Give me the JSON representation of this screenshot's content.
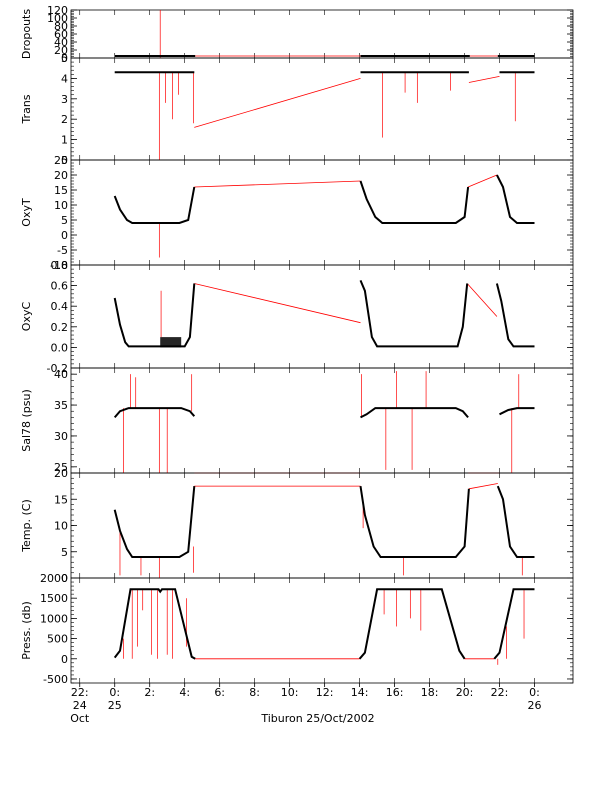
{
  "xlabel": "Tiburon 25/Oct/2002",
  "x_ticks": [
    {
      "t": -2,
      "label": "22:",
      "sub": "24"
    },
    {
      "t": 0,
      "label": "0:",
      "sub": "25"
    },
    {
      "t": 2,
      "label": "2:"
    },
    {
      "t": 4,
      "label": "4:"
    },
    {
      "t": 6,
      "label": "6:"
    },
    {
      "t": 8,
      "label": "8:"
    },
    {
      "t": 10,
      "label": "10:"
    },
    {
      "t": 12,
      "label": "12:"
    },
    {
      "t": 14,
      "label": "14:"
    },
    {
      "t": 16,
      "label": "16:"
    },
    {
      "t": 18,
      "label": "18:"
    },
    {
      "t": 20,
      "label": "20:"
    },
    {
      "t": 22,
      "label": "22:"
    },
    {
      "t": 24,
      "label": "0:",
      "sub": "26"
    }
  ],
  "x_month_label": "Oct",
  "colors": {
    "series": "#000000",
    "connector": "#ff0000",
    "axis": "#000000"
  },
  "chart_data": [
    {
      "type": "line",
      "ylabel": "Dropouts",
      "ylim": [
        0,
        120
      ],
      "yticks": [
        0,
        20,
        40,
        60,
        80,
        100,
        120
      ],
      "ytick_labels": [
        "0",
        "20",
        "40",
        "60",
        "80",
        "100",
        "120"
      ],
      "black_segments": [
        {
          "x": [
            0,
            4.6
          ],
          "y": [
            5,
            5
          ]
        },
        {
          "x": [
            14.05,
            20.3
          ],
          "y": [
            5,
            5
          ]
        },
        {
          "x": [
            21.9,
            24.0
          ],
          "y": [
            5,
            5
          ]
        }
      ],
      "red_segments": [
        {
          "x": [
            4.6,
            14.05
          ],
          "y": [
            5,
            5
          ]
        },
        {
          "x": [
            20.3,
            21.9
          ],
          "y": [
            5,
            5
          ]
        }
      ],
      "spikes": [
        {
          "x": 2.6,
          "y0": 0,
          "y1": 120
        }
      ]
    },
    {
      "type": "line",
      "ylabel": "Trans",
      "ylim": [
        0,
        5
      ],
      "yticks": [
        0,
        1,
        2,
        3,
        4,
        5
      ],
      "ytick_labels": [
        "0",
        "1",
        "2",
        "3",
        "4",
        "5"
      ],
      "black_segments": [
        {
          "x": [
            0,
            4.55
          ],
          "y": [
            4.3,
            4.3
          ]
        },
        {
          "x": [
            14.05,
            20.25
          ],
          "y": [
            4.3,
            4.3
          ]
        },
        {
          "x": [
            22.0,
            24.0
          ],
          "y": [
            4.3,
            4.3
          ]
        }
      ],
      "red_segments": [
        {
          "x": [
            4.55,
            14.05
          ],
          "y": [
            1.6,
            4.0
          ]
        },
        {
          "x": [
            20.25,
            22.0
          ],
          "y": [
            3.8,
            4.1
          ]
        }
      ],
      "spikes": [
        {
          "x": 2.55,
          "y0": 4.3,
          "y1": -0.2
        },
        {
          "x": 2.9,
          "y0": 4.3,
          "y1": 2.8
        },
        {
          "x": 3.3,
          "y0": 4.3,
          "y1": 2.0
        },
        {
          "x": 3.65,
          "y0": 4.3,
          "y1": 3.2
        },
        {
          "x": 4.5,
          "y0": 4.3,
          "y1": 1.8
        },
        {
          "x": 15.3,
          "y0": 4.3,
          "y1": 1.1
        },
        {
          "x": 16.6,
          "y0": 4.3,
          "y1": 3.3
        },
        {
          "x": 17.3,
          "y0": 4.3,
          "y1": 2.8
        },
        {
          "x": 19.2,
          "y0": 4.3,
          "y1": 3.4
        },
        {
          "x": 22.9,
          "y0": 4.3,
          "y1": 1.9
        }
      ]
    },
    {
      "type": "line",
      "ylabel": "OxyT",
      "ylim": [
        -10,
        25
      ],
      "yticks": [
        -10,
        -5,
        0,
        5,
        10,
        15,
        20,
        25
      ],
      "ytick_labels": [
        "-10",
        "-5",
        "0",
        "5",
        "10",
        "15",
        "20",
        "25"
      ],
      "black_segments": [
        {
          "x": [
            0,
            0.3,
            0.7,
            1.0,
            3.7,
            4.2,
            4.55
          ],
          "y": [
            13,
            8.5,
            5,
            4,
            4,
            5,
            16
          ]
        },
        {
          "x": [
            14.05,
            14.4,
            14.9,
            15.3,
            19.5,
            20.0,
            20.2
          ],
          "y": [
            18,
            12,
            6,
            4,
            4,
            6,
            16
          ]
        },
        {
          "x": [
            21.85,
            22.2,
            22.6,
            23.0,
            24.0
          ],
          "y": [
            20,
            16,
            6,
            4,
            4
          ]
        }
      ],
      "red_segments": [
        {
          "x": [
            4.55,
            14.05
          ],
          "y": [
            16,
            18
          ]
        },
        {
          "x": [
            20.2,
            21.85
          ],
          "y": [
            16,
            20
          ]
        }
      ],
      "spikes": [
        {
          "x": 2.55,
          "y0": 4,
          "y1": -7.5
        }
      ]
    },
    {
      "type": "line",
      "ylabel": "OxyC",
      "ylim": [
        -0.2,
        0.8
      ],
      "yticks": [
        -0.2,
        0.0,
        0.2,
        0.4,
        0.6,
        0.8
      ],
      "ytick_labels": [
        "-0.2",
        "0.0",
        "0.2",
        "0.4",
        "0.6",
        "0.8"
      ],
      "black_segments": [
        {
          "x": [
            0,
            0.3,
            0.6,
            0.8,
            4.0,
            4.3,
            4.55
          ],
          "y": [
            0.48,
            0.22,
            0.05,
            0.01,
            0.01,
            0.1,
            0.62
          ]
        },
        {
          "x": [
            14.05,
            14.3,
            14.7,
            15.0,
            19.6,
            19.9,
            20.15
          ],
          "y": [
            0.65,
            0.55,
            0.1,
            0.01,
            0.01,
            0.2,
            0.62
          ]
        },
        {
          "x": [
            21.85,
            22.1,
            22.5,
            22.8,
            24.0
          ],
          "y": [
            0.62,
            0.45,
            0.08,
            0.01,
            0.01
          ]
        }
      ],
      "red_segments": [
        {
          "x": [
            4.55,
            14.05
          ],
          "y": [
            0.62,
            0.24
          ]
        },
        {
          "x": [
            20.15,
            21.85
          ],
          "y": [
            0.62,
            0.3
          ]
        }
      ],
      "noise_band": {
        "x": [
          2.6,
          3.8
        ],
        "y": [
          0.0,
          0.1
        ]
      },
      "spikes": [
        {
          "x": 2.65,
          "y0": 0.1,
          "y1": 0.55
        }
      ]
    },
    {
      "type": "line",
      "ylabel": "Sal78 (psu)",
      "ylim": [
        24,
        41
      ],
      "yticks": [
        25,
        30,
        35,
        40
      ],
      "ytick_labels": [
        "25",
        "30",
        "35",
        "40"
      ],
      "black_segments": [
        {
          "x": [
            0,
            0.3,
            0.8,
            3.8,
            4.3,
            4.55
          ],
          "y": [
            33.0,
            34.0,
            34.5,
            34.5,
            34.0,
            33.2
          ]
        },
        {
          "x": [
            14.05,
            14.4,
            14.9,
            19.5,
            19.9,
            20.2
          ],
          "y": [
            33.0,
            33.5,
            34.5,
            34.5,
            34.0,
            33.0
          ]
        },
        {
          "x": [
            22.0,
            22.5,
            23.0,
            24.0
          ],
          "y": [
            33.5,
            34.2,
            34.5,
            34.5
          ]
        }
      ],
      "red_segments": [
        {
          "x": [
            4.55,
            14.05
          ],
          "y": [
            24.0,
            24.0
          ]
        },
        {
          "x": [
            20.2,
            22.0
          ],
          "y": [
            24.0,
            24.0
          ]
        }
      ],
      "spikes": [
        {
          "x": 0.5,
          "y0": 34.5,
          "y1": 24.0
        },
        {
          "x": 0.9,
          "y0": 34.5,
          "y1": 40.0
        },
        {
          "x": 1.2,
          "y0": 34.5,
          "y1": 39.5
        },
        {
          "x": 2.55,
          "y0": 34.5,
          "y1": 24.0
        },
        {
          "x": 3.0,
          "y0": 34.5,
          "y1": 24.0
        },
        {
          "x": 4.4,
          "y0": 34.0,
          "y1": 40.0
        },
        {
          "x": 14.1,
          "y0": 33.0,
          "y1": 40.0
        },
        {
          "x": 15.5,
          "y0": 34.5,
          "y1": 24.5
        },
        {
          "x": 16.1,
          "y0": 34.5,
          "y1": 40.5
        },
        {
          "x": 17.0,
          "y0": 34.5,
          "y1": 24.5
        },
        {
          "x": 17.8,
          "y0": 34.5,
          "y1": 40.5
        },
        {
          "x": 22.7,
          "y0": 34.5,
          "y1": 24.0
        },
        {
          "x": 23.1,
          "y0": 34.5,
          "y1": 40.0
        }
      ]
    },
    {
      "type": "line",
      "ylabel": "Temp. (C)",
      "ylim": [
        0,
        20
      ],
      "yticks": [
        0,
        5,
        10,
        15,
        20
      ],
      "ytick_labels": [
        "0",
        "5",
        "10",
        "15",
        "20"
      ],
      "black_segments": [
        {
          "x": [
            0,
            0.3,
            0.7,
            1.0,
            3.7,
            4.2,
            4.55
          ],
          "y": [
            13,
            9,
            5.5,
            4,
            4,
            5,
            17.5
          ]
        },
        {
          "x": [
            14.05,
            14.3,
            14.8,
            15.2,
            19.5,
            20.0,
            20.25
          ],
          "y": [
            17.5,
            12,
            6,
            4,
            4,
            6,
            17
          ]
        },
        {
          "x": [
            21.9,
            22.2,
            22.6,
            23.0,
            24.0
          ],
          "y": [
            17.5,
            15,
            6,
            4,
            4
          ]
        }
      ],
      "red_segments": [
        {
          "x": [
            4.55,
            14.05
          ],
          "y": [
            17.5,
            17.5
          ]
        },
        {
          "x": [
            20.25,
            21.9
          ],
          "y": [
            17,
            18
          ]
        }
      ],
      "spikes": [
        {
          "x": 0.3,
          "y0": 9,
          "y1": 0.5
        },
        {
          "x": 1.5,
          "y0": 4,
          "y1": 0.5
        },
        {
          "x": 2.55,
          "y0": 4,
          "y1": -0.5
        },
        {
          "x": 4.5,
          "y0": 6,
          "y1": 1.0
        },
        {
          "x": 14.2,
          "y0": 14,
          "y1": 9.5
        },
        {
          "x": 16.5,
          "y0": 4,
          "y1": 0.5
        },
        {
          "x": 23.3,
          "y0": 4,
          "y1": 0.5
        }
      ]
    },
    {
      "type": "line",
      "ylabel": "Press. (db)",
      "ylim": [
        -600,
        2000
      ],
      "yticks": [
        -500,
        0,
        500,
        1000,
        1500,
        2000
      ],
      "ytick_labels": [
        "-500",
        "0",
        "500",
        "1000",
        "1500",
        "2000"
      ],
      "black_segments": [
        {
          "x": [
            0,
            0.3,
            0.9,
            2.5,
            2.6,
            2.7,
            3.45,
            4.4,
            4.6
          ],
          "y": [
            30,
            200,
            1720,
            1720,
            1660,
            1720,
            1720,
            50,
            0
          ]
        },
        {
          "x": [
            14.0,
            14.3,
            15.0,
            18.7,
            19.7,
            20.0
          ],
          "y": [
            0,
            150,
            1720,
            1720,
            200,
            0
          ]
        },
        {
          "x": [
            21.7,
            22.0,
            22.8,
            24.0
          ],
          "y": [
            0,
            150,
            1720,
            1720
          ]
        }
      ],
      "red_segments": [
        {
          "x": [
            4.6,
            14.0
          ],
          "y": [
            0,
            0
          ]
        },
        {
          "x": [
            20.0,
            21.7
          ],
          "y": [
            0,
            0
          ]
        }
      ],
      "spikes": [
        {
          "x": 0.5,
          "y0": 500,
          "y1": 0
        },
        {
          "x": 1.0,
          "y0": 1720,
          "y1": 0
        },
        {
          "x": 1.3,
          "y0": 1720,
          "y1": 300
        },
        {
          "x": 1.6,
          "y0": 1720,
          "y1": 1200
        },
        {
          "x": 2.1,
          "y0": 1720,
          "y1": 100
        },
        {
          "x": 2.45,
          "y0": 1720,
          "y1": 0
        },
        {
          "x": 3.0,
          "y0": 1720,
          "y1": 100
        },
        {
          "x": 3.3,
          "y0": 1720,
          "y1": 0
        },
        {
          "x": 4.1,
          "y0": 300,
          "y1": 1500
        },
        {
          "x": 15.4,
          "y0": 1720,
          "y1": 1100
        },
        {
          "x": 16.1,
          "y0": 1720,
          "y1": 800
        },
        {
          "x": 16.9,
          "y0": 1720,
          "y1": 1000
        },
        {
          "x": 17.5,
          "y0": 1720,
          "y1": 700
        },
        {
          "x": 21.9,
          "y0": 0,
          "y1": -150
        },
        {
          "x": 22.4,
          "y0": 800,
          "y1": 0
        },
        {
          "x": 23.4,
          "y0": 1720,
          "y1": 500
        }
      ]
    }
  ]
}
